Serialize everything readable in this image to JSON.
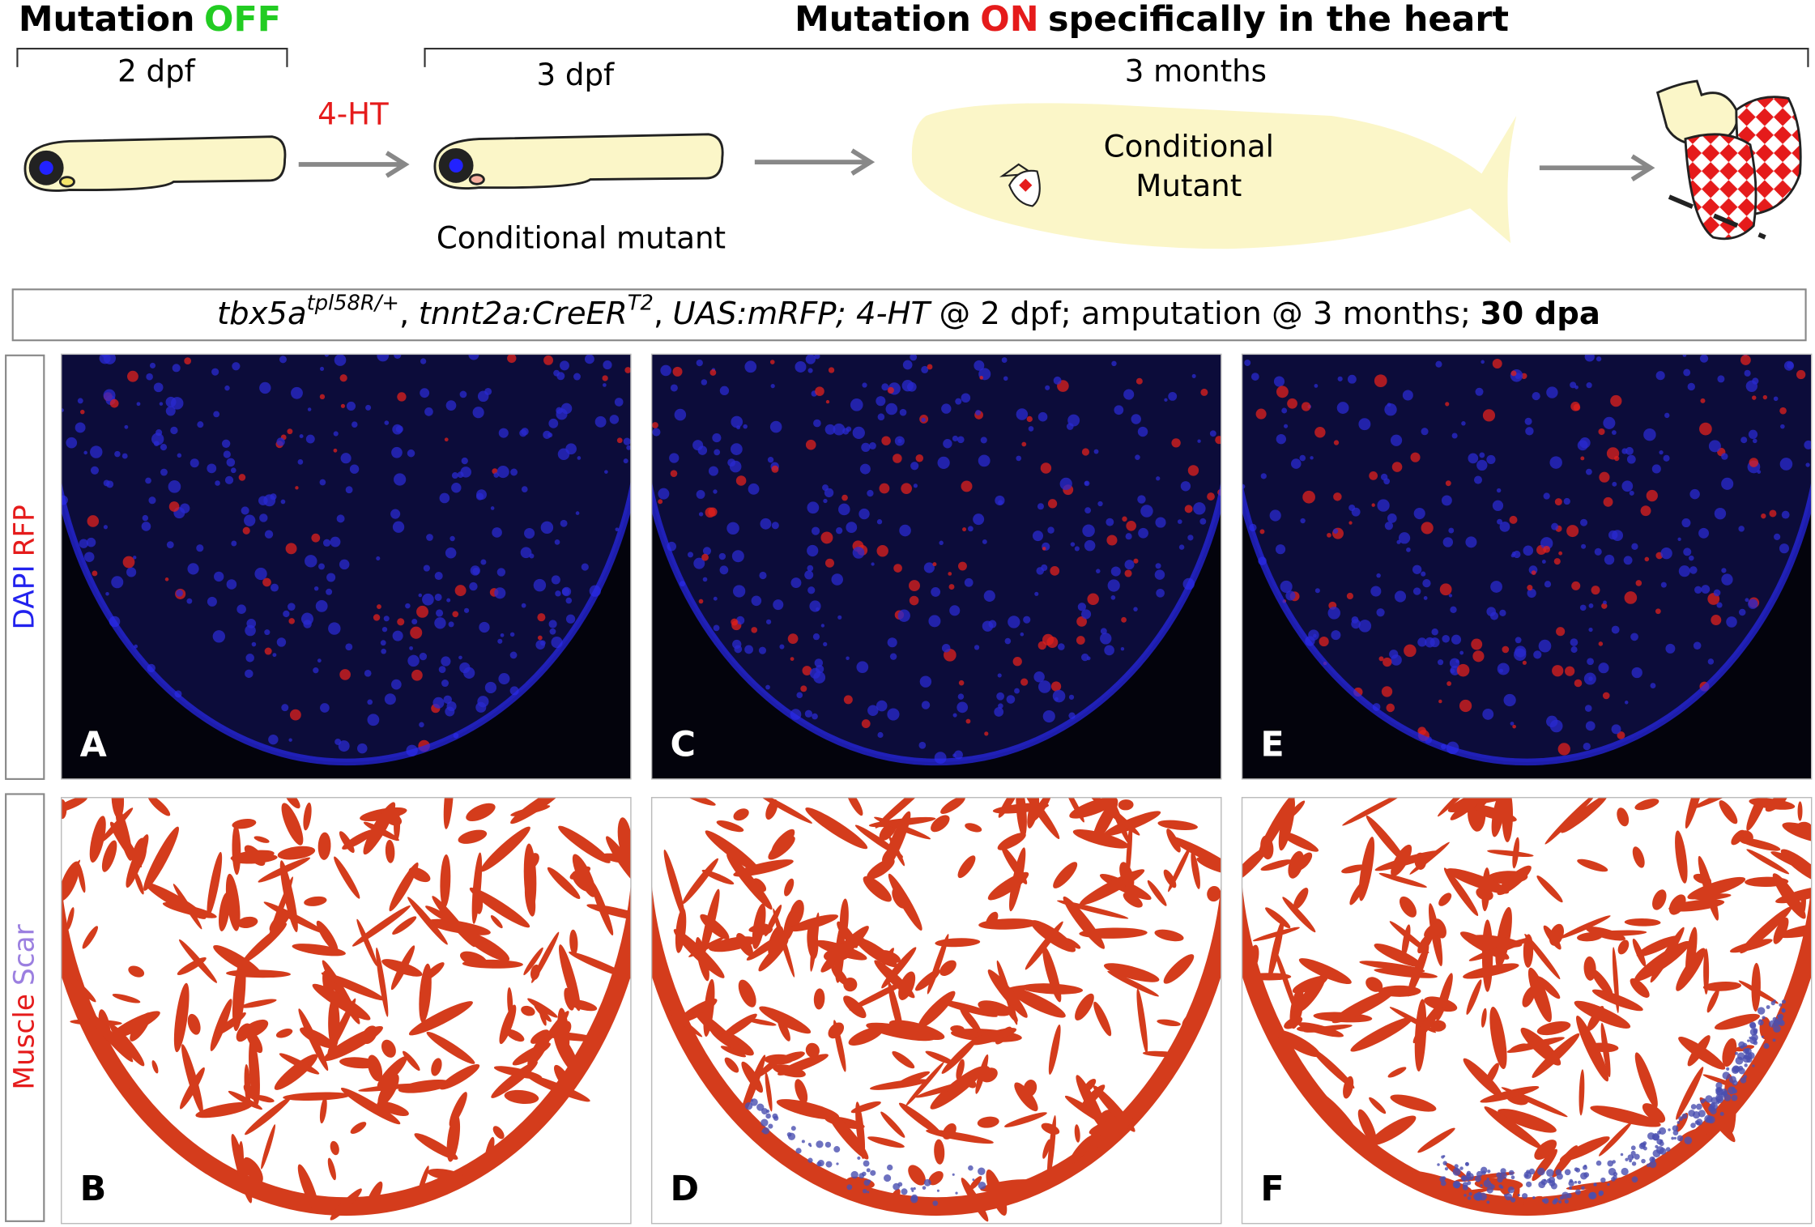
{
  "header": {
    "off": {
      "word": "Mutation",
      "state": "OFF"
    },
    "on": {
      "word": "Mutation",
      "state": "ON",
      "rest": "specifically in the heart"
    }
  },
  "timeline": {
    "stage1": "2 dpf",
    "treatment": "4-HT",
    "stage2": "3 dpf",
    "stage2_caption": "Conditional mutant",
    "stage3": "3 months",
    "fish_label": [
      "Conditional",
      "Mutant"
    ]
  },
  "genotype": {
    "parts": [
      "tbx5a",
      "tpl58R/+",
      ",",
      "tnnt2a:CreER",
      "T2",
      ",",
      "UAS:mRFP; 4-HT",
      "@ 2 dpf; amputation @ 3 months;",
      "30 dpa"
    ]
  },
  "rows": [
    {
      "labels": [
        "DAPI",
        "RFP"
      ],
      "panels": [
        "A",
        "C",
        "E"
      ]
    },
    {
      "labels": [
        "Muscle",
        "Scar"
      ],
      "panels": [
        "B",
        "D",
        "F"
      ]
    }
  ]
}
